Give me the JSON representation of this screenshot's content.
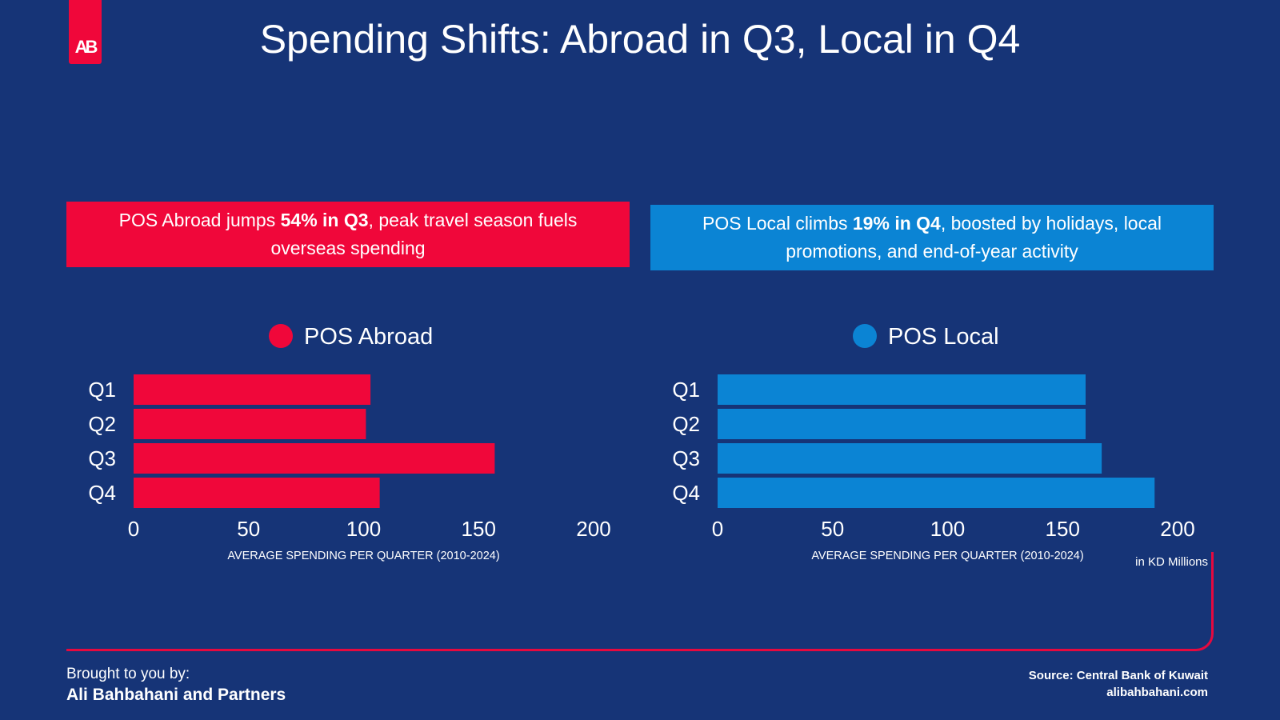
{
  "header": {
    "logo_text": "AB",
    "title": "Spending Shifts: Abroad in Q3, Local in Q4"
  },
  "callouts": {
    "left": {
      "before": "POS Abroad jumps ",
      "bold": "54% in Q3",
      "after": ", peak travel season fuels overseas spending"
    },
    "right": {
      "before": "POS Local climbs ",
      "bold": "19% in Q4",
      "after": ", boosted by holidays, local promotions, and end-of-year activity"
    }
  },
  "colors": {
    "abroad": "#f0073a",
    "local": "#0b84d4",
    "background": "#163477"
  },
  "chart_data": [
    {
      "type": "bar",
      "orientation": "horizontal",
      "legend": "POS Abroad",
      "categories": [
        "Q1",
        "Q2",
        "Q3",
        "Q4"
      ],
      "values": [
        103,
        101,
        157,
        107
      ],
      "xlim": [
        0,
        200
      ],
      "xticks": [
        0,
        50,
        100,
        150,
        200
      ],
      "xlabel": "AVERAGE SPENDING PER QUARTER (2010-2024)",
      "color": "#f0073a"
    },
    {
      "type": "bar",
      "orientation": "horizontal",
      "legend": "POS Local",
      "categories": [
        "Q1",
        "Q2",
        "Q3",
        "Q4"
      ],
      "values": [
        160,
        160,
        167,
        190
      ],
      "xlim": [
        0,
        200
      ],
      "xticks": [
        0,
        50,
        100,
        150,
        200
      ],
      "xlabel": "AVERAGE SPENDING PER QUARTER (2010-2024)",
      "color": "#0b84d4"
    }
  ],
  "unit_note": "in KD Millions",
  "footer": {
    "brought": "Brought to you by:",
    "brand": "Ali Bahbahani and Partners",
    "source": "Source: Central Bank of Kuwait",
    "website": "alibahbahani.com"
  }
}
